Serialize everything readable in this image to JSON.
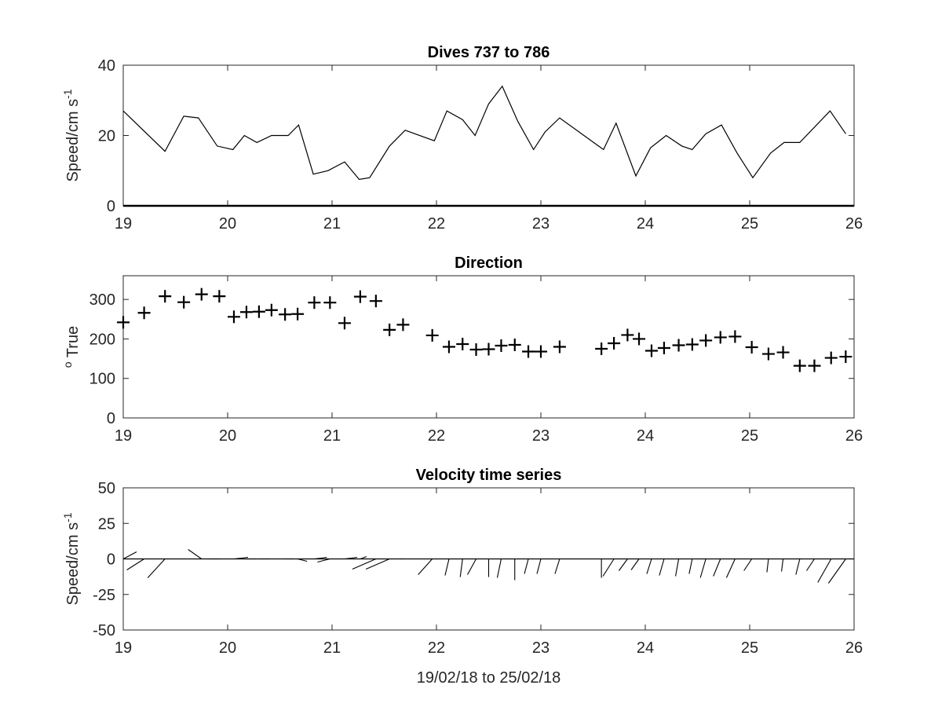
{
  "chart_data": [
    {
      "type": "line",
      "title": "Dives 737 to 786",
      "ylabel_main": "Speed/cm s",
      "ylabel_sup": "-1",
      "xlim": [
        19,
        26
      ],
      "ylim": [
        0,
        40
      ],
      "xticks": [
        19,
        20,
        21,
        22,
        23,
        24,
        25,
        26
      ],
      "yticks": [
        0,
        20,
        40
      ],
      "x": [
        19.0,
        19.4,
        19.58,
        19.72,
        19.9,
        20.05,
        20.16,
        20.28,
        20.42,
        20.58,
        20.68,
        20.82,
        20.96,
        21.12,
        21.26,
        21.36,
        21.55,
        21.7,
        21.98,
        22.1,
        22.25,
        22.37,
        22.5,
        22.63,
        22.78,
        22.93,
        23.04,
        23.18,
        23.6,
        23.72,
        23.91,
        24.05,
        24.2,
        24.35,
        24.45,
        24.58,
        24.73,
        24.88,
        25.03,
        25.2,
        25.33,
        25.48,
        25.77,
        25.92
      ],
      "y": [
        27,
        15.5,
        25.5,
        25,
        17,
        16,
        20,
        18,
        20,
        20,
        23,
        9,
        10,
        12.5,
        7.5,
        8,
        17,
        21.5,
        18.5,
        27,
        24.5,
        20,
        29,
        34,
        24,
        16,
        21,
        25,
        16,
        23.5,
        8.5,
        16.5,
        20,
        17,
        16,
        20.5,
        23,
        15,
        8,
        15,
        18,
        18,
        27,
        20.5
      ]
    },
    {
      "type": "scatter",
      "title": "Direction",
      "ylabel_main": "True",
      "ylabel_sup": "o",
      "xlim": [
        19,
        26
      ],
      "ylim": [
        0,
        360
      ],
      "xticks": [
        19,
        20,
        21,
        22,
        23,
        24,
        25,
        26
      ],
      "yticks": [
        0,
        100,
        200,
        300
      ],
      "x": [
        19.0,
        19.2,
        19.4,
        19.58,
        19.75,
        19.92,
        20.06,
        20.18,
        20.3,
        20.42,
        20.55,
        20.67,
        20.83,
        20.98,
        21.12,
        21.27,
        21.42,
        21.55,
        21.68,
        21.96,
        22.12,
        22.25,
        22.38,
        22.5,
        22.62,
        22.75,
        22.88,
        23.0,
        23.18,
        23.58,
        23.7,
        23.83,
        23.94,
        24.06,
        24.18,
        24.32,
        24.45,
        24.58,
        24.72,
        24.86,
        25.02,
        25.18,
        25.32,
        25.48,
        25.62,
        25.78,
        25.92
      ],
      "y": [
        242,
        266,
        308,
        293,
        313,
        308,
        256,
        268,
        269,
        273,
        262,
        263,
        292,
        292,
        240,
        307,
        296,
        223,
        236,
        209,
        180,
        187,
        173,
        174,
        183,
        185,
        168,
        168,
        180,
        175,
        189,
        210,
        200,
        170,
        177,
        184,
        186,
        196,
        204,
        206,
        179,
        162,
        166,
        132,
        132,
        152,
        155
      ]
    },
    {
      "type": "line",
      "subtype": "vector-sticks",
      "title": "Velocity time series",
      "ylabel_main": "Speed/cm s",
      "ylabel_sup": "-1",
      "xlabel": "19/02/18 to 25/02/18",
      "xlim": [
        19,
        26
      ],
      "ylim": [
        -50,
        50
      ],
      "xticks": [
        19,
        20,
        21,
        22,
        23,
        24,
        25,
        26
      ],
      "yticks": [
        -50,
        -25,
        0,
        25,
        50
      ],
      "x": [
        19.0,
        19.2,
        19.4,
        19.58,
        19.75,
        19.92,
        20.06,
        20.18,
        20.3,
        20.42,
        20.55,
        20.67,
        20.83,
        20.98,
        21.12,
        21.27,
        21.42,
        21.55,
        21.68,
        21.96,
        22.12,
        22.25,
        22.38,
        22.5,
        22.62,
        22.75,
        22.88,
        23.0,
        23.18,
        23.58,
        23.7,
        23.83,
        23.94,
        24.06,
        24.18,
        24.32,
        24.45,
        24.58,
        24.72,
        24.86,
        25.02,
        25.18,
        25.32,
        25.48,
        25.62,
        25.78,
        25.92
      ]
    }
  ]
}
